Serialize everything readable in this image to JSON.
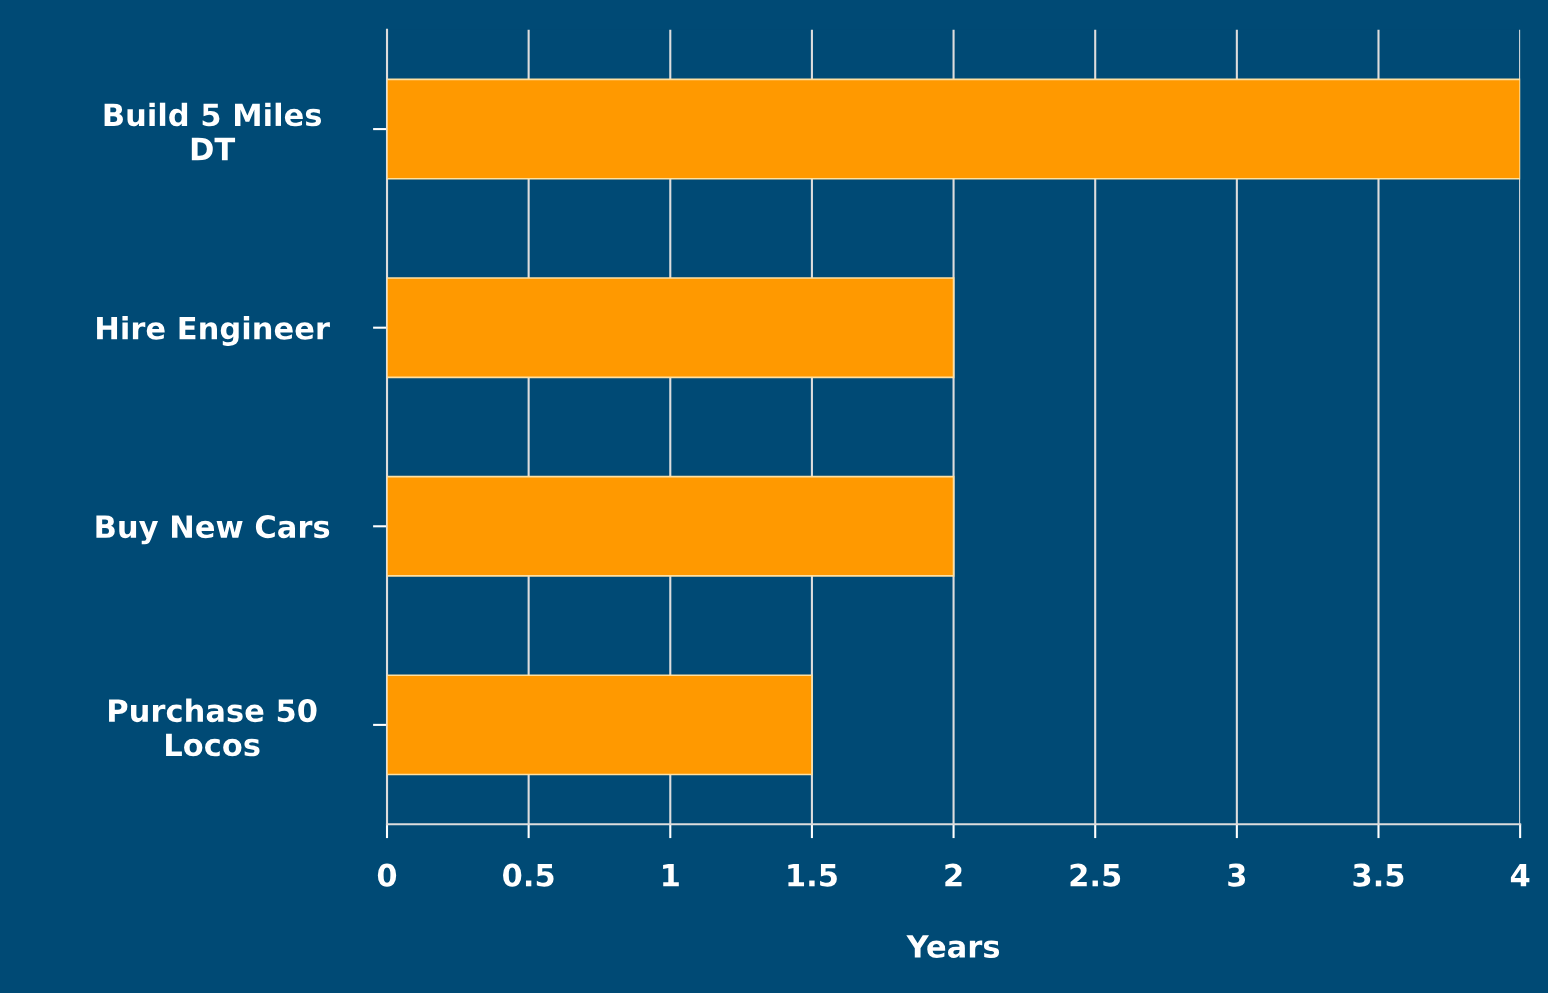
{
  "chart_data": {
    "type": "bar",
    "orientation": "horizontal",
    "xlabel": "Years",
    "categories": [
      "Build 5 Miles\nDT",
      "Hire Engineer",
      "Buy New Cars",
      "Purchase 50\nLocos"
    ],
    "values": [
      4,
      2,
      2,
      1.5
    ],
    "color": "#ff9900",
    "xlim": [
      0,
      4
    ],
    "xticks": [
      0,
      0.5,
      1,
      1.5,
      2,
      2.5,
      3,
      3.5,
      4
    ],
    "grid": "x"
  }
}
